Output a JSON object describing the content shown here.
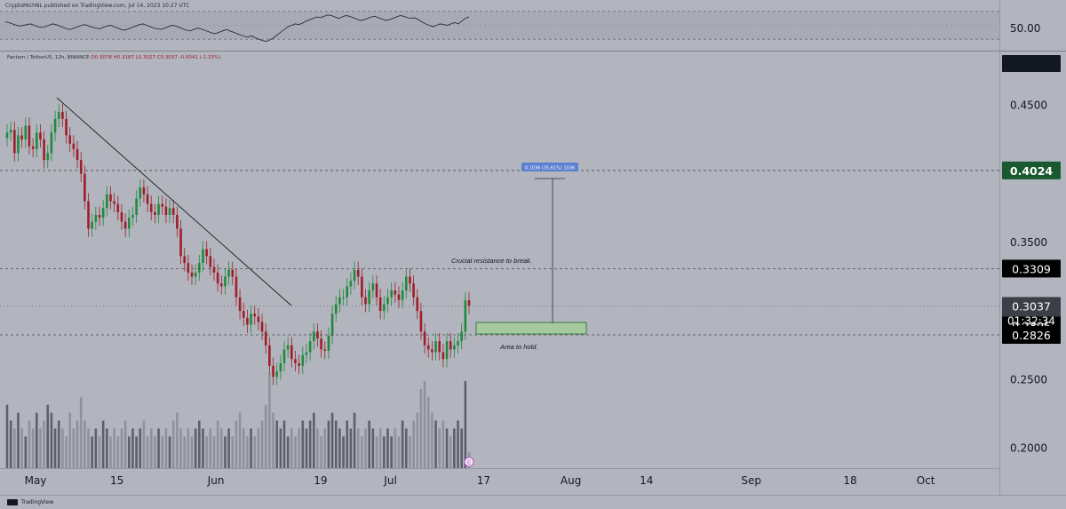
{
  "header": {
    "published_line": "CryptoMichNL published on TradingView.com, Jul 14, 2023 10:27 UTC"
  },
  "legend": {
    "symbol": "Fantom / TetherUS, 12h, BINANCE",
    "ohlc": "O0.3078 H0.3187 L0.3027 C0.3037 -0.0041 (-1.33%)"
  },
  "footer": {
    "brand": "TradingView"
  },
  "colors": {
    "background": "#b2b5be",
    "up": "#1f8a3c",
    "down": "#a01d2a",
    "volume": "#5d606b",
    "volume_light": "#8f929b",
    "tag_dark": "#000000",
    "tag_green": "#19592f",
    "tag_gray": "#3c3f48",
    "measure_blue": "#5b7fd1",
    "zone_fill": "#a6c9a0",
    "zone_border": "#1e6b2c"
  },
  "chart_data": [
    {
      "type": "line",
      "title": "",
      "y_ticks": [
        "50.00"
      ],
      "y_range": [
        20,
        80
      ],
      "band": [
        30,
        70
      ],
      "values": [
        55,
        54,
        52,
        50,
        49,
        50,
        51,
        52,
        50,
        48,
        47,
        48,
        50,
        52,
        51,
        49,
        47,
        45,
        44,
        46,
        48,
        50,
        51,
        49,
        47,
        46,
        45,
        47,
        49,
        50,
        48,
        46,
        44,
        43,
        45,
        47,
        49,
        51,
        52,
        50,
        48,
        46,
        45,
        44,
        46,
        48,
        50,
        49,
        47,
        45,
        43,
        42,
        44,
        46,
        45,
        43,
        41,
        39,
        38,
        40,
        42,
        44,
        42,
        40,
        38,
        36,
        34,
        33,
        35,
        32,
        30,
        28,
        27,
        29,
        32,
        36,
        40,
        44,
        48,
        50,
        52,
        51,
        53,
        56,
        58,
        60,
        62,
        61,
        63,
        65,
        64,
        62,
        60,
        62,
        64,
        63,
        61,
        59,
        57,
        58,
        60,
        62,
        63,
        61,
        59,
        57,
        58,
        60,
        62,
        64,
        63,
        61,
        60,
        61,
        58,
        55,
        52,
        50,
        48,
        50,
        52,
        51,
        50,
        52,
        54,
        52,
        56,
        60,
        62
      ]
    },
    {
      "type": "candlestick",
      "title": "",
      "x_tick_labels": [
        "May",
        "15",
        "Jun",
        "19",
        "Jul",
        "17",
        "Aug",
        "14",
        "Sep",
        "18",
        "Oct"
      ],
      "y_tick_labels": [
        "0.4500",
        "0.3500",
        "0.2500",
        "0.2000"
      ],
      "y_range": [
        0.1855,
        0.4865
      ],
      "last_price": 0.3037,
      "countdown": "01:32:34",
      "price_levels": [
        {
          "label": "0.4024",
          "value": 0.4024,
          "style": "green"
        },
        {
          "label": "0.3309",
          "value": 0.3309,
          "style": "dark"
        },
        {
          "label": "0.3037",
          "value": 0.3037,
          "style": "gray"
        },
        {
          "label": "0.2895",
          "value": 0.2895,
          "style": "dark"
        },
        {
          "label": "0.2826",
          "value": 0.2826,
          "style": "dark"
        }
      ],
      "close": [
        0.43,
        0.432,
        0.415,
        0.428,
        0.425,
        0.435,
        0.42,
        0.418,
        0.43,
        0.425,
        0.41,
        0.415,
        0.43,
        0.44,
        0.445,
        0.44,
        0.428,
        0.422,
        0.418,
        0.41,
        0.4,
        0.38,
        0.36,
        0.365,
        0.37,
        0.368,
        0.375,
        0.385,
        0.38,
        0.378,
        0.372,
        0.365,
        0.36,
        0.368,
        0.37,
        0.382,
        0.39,
        0.385,
        0.378,
        0.372,
        0.37,
        0.378,
        0.376,
        0.37,
        0.375,
        0.37,
        0.36,
        0.34,
        0.335,
        0.328,
        0.325,
        0.328,
        0.335,
        0.345,
        0.34,
        0.332,
        0.328,
        0.32,
        0.318,
        0.325,
        0.33,
        0.325,
        0.31,
        0.3,
        0.295,
        0.29,
        0.298,
        0.296,
        0.292,
        0.285,
        0.275,
        0.26,
        0.252,
        0.256,
        0.262,
        0.272,
        0.275,
        0.265,
        0.262,
        0.26,
        0.268,
        0.27,
        0.278,
        0.285,
        0.28,
        0.272,
        0.271,
        0.282,
        0.298,
        0.305,
        0.31,
        0.31,
        0.318,
        0.322,
        0.33,
        0.325,
        0.31,
        0.305,
        0.315,
        0.32,
        0.31,
        0.3,
        0.305,
        0.31,
        0.315,
        0.312,
        0.308,
        0.315,
        0.325,
        0.32,
        0.31,
        0.3,
        0.285,
        0.275,
        0.272,
        0.27,
        0.278,
        0.27,
        0.265,
        0.278,
        0.272,
        0.275,
        0.278,
        0.285,
        0.3078,
        0.3037
      ],
      "volume": [
        0.08,
        0.06,
        0.05,
        0.07,
        0.05,
        0.04,
        0.06,
        0.05,
        0.07,
        0.05,
        0.06,
        0.08,
        0.07,
        0.05,
        0.06,
        0.05,
        0.04,
        0.07,
        0.05,
        0.06,
        0.09,
        0.06,
        0.05,
        0.04,
        0.05,
        0.04,
        0.06,
        0.05,
        0.04,
        0.05,
        0.04,
        0.05,
        0.06,
        0.04,
        0.05,
        0.04,
        0.05,
        0.06,
        0.04,
        0.05,
        0.04,
        0.05,
        0.04,
        0.05,
        0.04,
        0.06,
        0.07,
        0.05,
        0.04,
        0.05,
        0.04,
        0.05,
        0.06,
        0.05,
        0.04,
        0.05,
        0.04,
        0.06,
        0.05,
        0.04,
        0.05,
        0.04,
        0.06,
        0.07,
        0.05,
        0.04,
        0.05,
        0.04,
        0.05,
        0.06,
        0.08,
        0.12,
        0.07,
        0.06,
        0.05,
        0.06,
        0.04,
        0.05,
        0.04,
        0.05,
        0.06,
        0.05,
        0.06,
        0.07,
        0.05,
        0.04,
        0.05,
        0.06,
        0.07,
        0.06,
        0.05,
        0.04,
        0.06,
        0.05,
        0.07,
        0.05,
        0.04,
        0.05,
        0.06,
        0.05,
        0.04,
        0.05,
        0.04,
        0.05,
        0.04,
        0.05,
        0.04,
        0.06,
        0.05,
        0.04,
        0.06,
        0.07,
        0.1,
        0.11,
        0.09,
        0.07,
        0.06,
        0.05,
        0.06,
        0.05,
        0.04,
        0.05,
        0.06,
        0.05,
        0.11,
        0.02
      ]
    }
  ],
  "annotations": {
    "measure_label": "0.1036 (35.61%) 1036",
    "resistance_text": "Crucial resistance to break.",
    "support_text": "Area to hold."
  },
  "markers": {
    "event_badge": "E"
  }
}
